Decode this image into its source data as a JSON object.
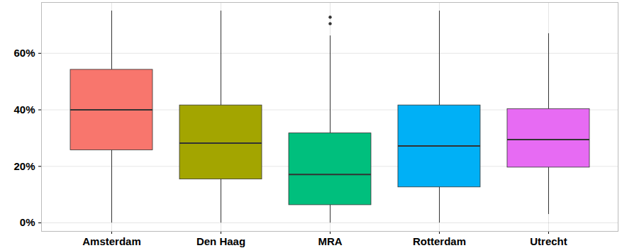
{
  "chart_data": {
    "type": "box",
    "categories": [
      "Amsterdam",
      "Den Haag",
      "MRA",
      "Rotterdam",
      "Utrecht"
    ],
    "min": [
      0,
      0,
      0,
      0,
      3
    ],
    "q1": [
      25.7,
      15.4,
      6.3,
      12.6,
      19.6
    ],
    "median": [
      40,
      28.2,
      17.1,
      27.2,
      29.5
    ],
    "q3": [
      54.2,
      41.6,
      31.7,
      41.6,
      40.3
    ],
    "max": [
      75,
      75,
      66.2,
      75,
      67
    ],
    "outliers": [
      [],
      [],
      [
        72.8,
        70.5
      ],
      [],
      []
    ],
    "colors": [
      "#F8766D",
      "#A3A500",
      "#00BF7D",
      "#00B0F6",
      "#E76BF3"
    ],
    "ylim": [
      -3,
      78
    ],
    "yticks": [
      {
        "value": 0,
        "label": "0%"
      },
      {
        "value": 20,
        "label": "20%"
      },
      {
        "value": 40,
        "label": "40%"
      },
      {
        "value": 60,
        "label": "60%"
      }
    ],
    "grid": true
  }
}
